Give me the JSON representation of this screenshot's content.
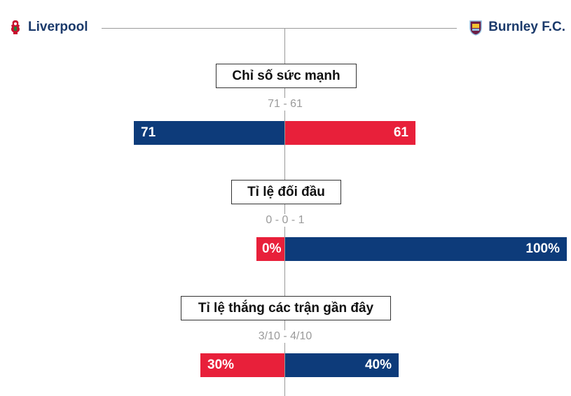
{
  "header": {
    "home_team": "Liverpool",
    "away_team": "Burnley F.C.",
    "home_crest_icon": "liverpool-crest-icon",
    "away_crest_icon": "burnley-crest-icon"
  },
  "colors": {
    "navy": "#0d3b7a",
    "red": "#e8203a"
  },
  "sections": [
    {
      "title": "Chỉ số sức mạnh",
      "subtitle": "71 - 61",
      "left_value": "71",
      "right_value": "61",
      "left_color": "navy",
      "right_color": "red"
    },
    {
      "title": "Tỉ lệ đối đầu",
      "subtitle": "0 - 0 - 1",
      "left_value": "0%",
      "right_value": "100%",
      "left_color": "red",
      "right_color": "navy"
    },
    {
      "title": "Tỉ lệ thắng các trận gần đây",
      "subtitle": "3/10 - 4/10",
      "left_value": "30%",
      "right_value": "40%",
      "left_color": "red",
      "right_color": "navy"
    }
  ]
}
